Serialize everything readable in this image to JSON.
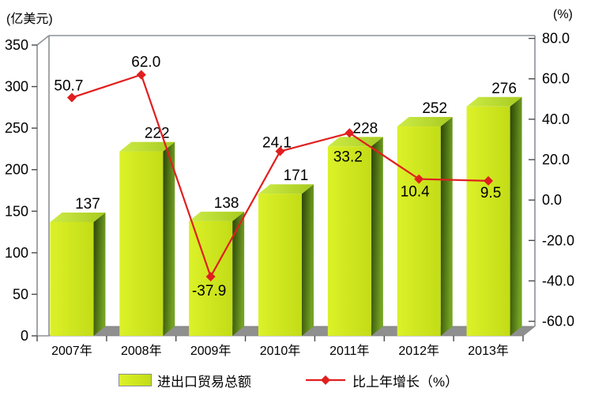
{
  "chart_data": {
    "type": "bar",
    "subtype": "3d-bar-with-line-overlay",
    "categories": [
      "2007年",
      "2008年",
      "2009年",
      "2010年",
      "2011年",
      "2012年",
      "2013年"
    ],
    "series": [
      {
        "name": "进出口贸易总额",
        "type": "bar",
        "axis": "left",
        "values": [
          137,
          222,
          138,
          171,
          228,
          252,
          276
        ],
        "labels": [
          "137",
          "222",
          "138",
          "171",
          "228",
          "252",
          "276"
        ]
      },
      {
        "name": "比上年增长（%）",
        "type": "line",
        "axis": "right",
        "values": [
          50.7,
          62.0,
          -37.9,
          24.1,
          33.2,
          10.4,
          9.5
        ],
        "labels": [
          "50.7",
          "62.0",
          "-37.9",
          "24.1",
          "33.2",
          "10.4",
          "9.5"
        ]
      }
    ],
    "left_axis": {
      "unit_label": "(亿美元)",
      "min": 0,
      "max": 350,
      "step": 50,
      "tick_labels": [
        "350",
        "300",
        "250",
        "200",
        "150",
        "100",
        "50",
        "0"
      ]
    },
    "right_axis": {
      "unit_label": "(%)",
      "min": -60,
      "max": 80,
      "step": 20,
      "tick_labels": [
        "80.0",
        "60.0",
        "40.0",
        "20.0",
        "0.0",
        "-20.0",
        "-40.0",
        "-60.0"
      ]
    },
    "legend": {
      "position": "bottom",
      "items": [
        "进出口贸易总额",
        "比上年增长（%）"
      ]
    },
    "grid": false,
    "colors": {
      "bar_front_light": "#dcf128",
      "bar_front_dark": "#c2dc17",
      "bar_top_light": "#cdeb48",
      "bar_top_dark": "#a7cb1f",
      "bar_side_dark": "#2a4306",
      "bar_side_light": "#74a323",
      "line": "#e01f1f",
      "floor": "#8f8f8f",
      "frame": "#8b9196",
      "tick": "#4a4a4a",
      "label": "#000000"
    }
  }
}
